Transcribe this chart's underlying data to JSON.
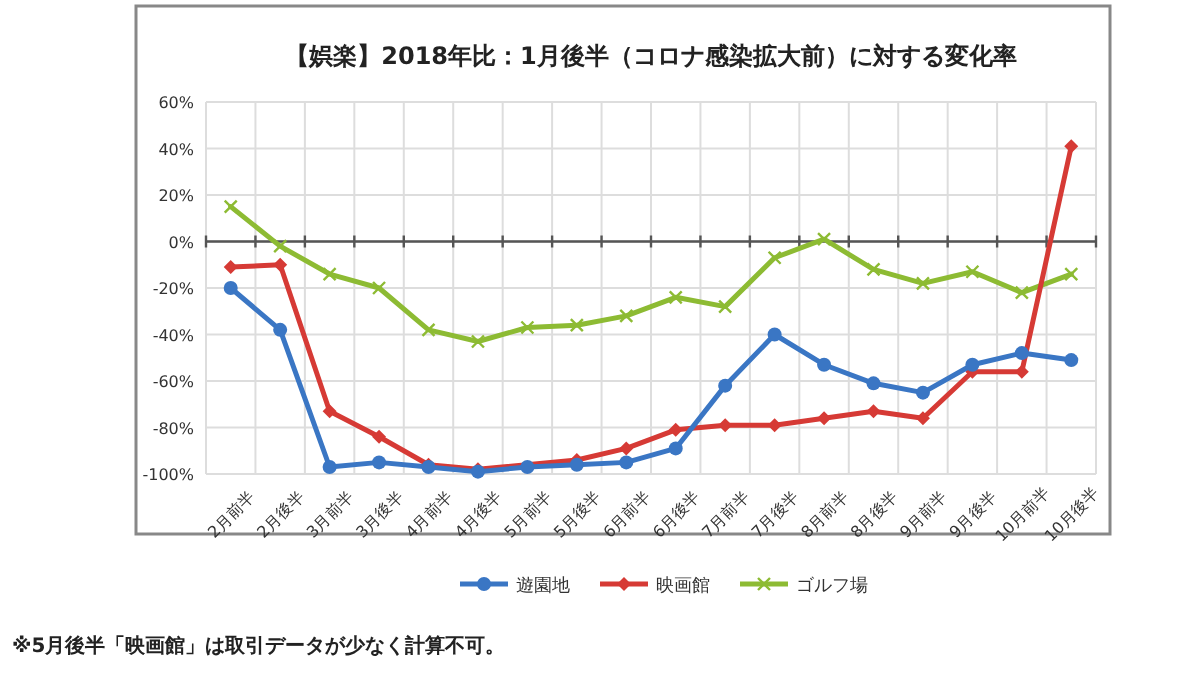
{
  "chart_data": {
    "type": "line",
    "title": "【娯楽】2018年比：1月後半（コロナ感染拡大前）に対する変化率",
    "categories": [
      "2月前半",
      "2月後半",
      "3月前半",
      "3月後半",
      "4月前半",
      "4月後半",
      "5月前半",
      "5月後半",
      "6月前半",
      "6月後半",
      "7月前半",
      "7月後半",
      "8月前半",
      "8月後半",
      "9月前半",
      "9月後半",
      "10月前半",
      "10月後半"
    ],
    "series": [
      {
        "name": "遊園地",
        "color": "#3a76c4",
        "marker": "circle",
        "values": [
          -20,
          -38,
          -97,
          -95,
          -97,
          -99,
          -97,
          -96,
          -95,
          -89,
          -62,
          -40,
          -53,
          -61,
          -65,
          -53,
          -48,
          -51
        ]
      },
      {
        "name": "映画館",
        "color": "#d63a35",
        "marker": "diamond",
        "values": [
          -11,
          -10,
          -73,
          -84,
          -96,
          -98,
          null,
          -94,
          -89,
          -81,
          -79,
          -79,
          -76,
          -73,
          -76,
          -56,
          -56,
          41
        ]
      },
      {
        "name": "ゴルフ場",
        "color": "#8dbb33",
        "marker": "cross",
        "values": [
          15,
          -2,
          -14,
          -20,
          -38,
          -43,
          -37,
          -36,
          -32,
          -24,
          -28,
          -7,
          1,
          -12,
          -18,
          -13,
          -22,
          -14
        ]
      }
    ],
    "ylim": [
      -100,
      60
    ],
    "yticks": [
      {
        "value": -100,
        "label": "-100%"
      },
      {
        "value": -80,
        "label": "-80%"
      },
      {
        "value": -60,
        "label": "-60%"
      },
      {
        "value": -40,
        "label": "-40%"
      },
      {
        "value": -20,
        "label": "-20%"
      },
      {
        "value": 0,
        "label": "0%"
      },
      {
        "value": 20,
        "label": "20%"
      },
      {
        "value": 40,
        "label": "40%"
      },
      {
        "value": 60,
        "label": "60%"
      }
    ],
    "grid": true,
    "legend": "bottom",
    "annotations": [
      "※5月後半「映画館」は取引データが少なく計算不可。"
    ]
  }
}
